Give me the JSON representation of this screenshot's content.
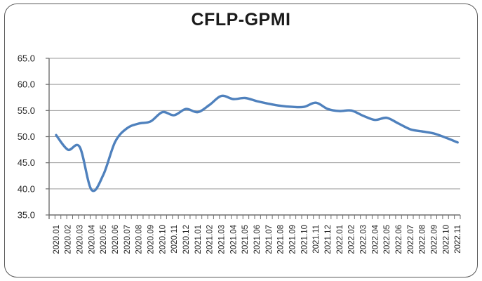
{
  "chart_data": {
    "type": "line",
    "title": "CFLP-GPMI",
    "x": [
      "2020.01",
      "2020.02",
      "2020.03",
      "2020.04",
      "2020.05",
      "2020.06",
      "2020.07",
      "2020.08",
      "2020.09",
      "2020.10",
      "2020.11",
      "2020.12",
      "2021.01",
      "2021.02",
      "2021.03",
      "2021.04",
      "2021.05",
      "2021.06",
      "2021.07",
      "2021.08",
      "2021.09",
      "2021.10",
      "2021.11",
      "2021.12",
      "2022.01",
      "2022.02",
      "2022.03",
      "2022.04",
      "2022.05",
      "2022.06",
      "2022.07",
      "2022.08",
      "2022.09",
      "2022.10",
      "2022.11"
    ],
    "values": [
      50.3,
      47.5,
      48.0,
      39.8,
      42.7,
      49.0,
      51.6,
      52.5,
      52.9,
      54.7,
      54.1,
      55.3,
      54.7,
      56.1,
      57.8,
      57.2,
      57.4,
      56.8,
      56.3,
      55.9,
      55.7,
      55.7,
      56.5,
      55.3,
      54.9,
      55.0,
      54.0,
      53.2,
      53.6,
      52.5,
      51.4,
      51.0,
      50.6,
      49.8,
      48.9
    ],
    "ylim": [
      35,
      65
    ],
    "y_tick_step": 5,
    "y_tick_labels": [
      "65.0",
      "60.0",
      "55.0",
      "50.0",
      "45.0",
      "40.0",
      "35.0"
    ],
    "xlabel": "",
    "ylabel": "",
    "grid": true,
    "legend": "none",
    "line_color": "#4F81BD",
    "smoothed": true
  },
  "style": {
    "frame_border_color": "#595959",
    "background_color": "#FFFFFF",
    "grid_color": "#999999",
    "axis_color": "#6E6E6E",
    "text_color": "#262626"
  }
}
